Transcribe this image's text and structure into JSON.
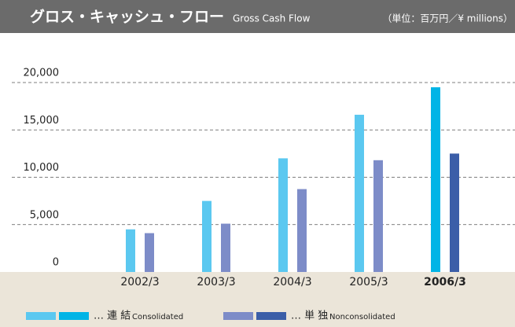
{
  "chart_data": {
    "type": "bar",
    "title": "グロス・キャッシュ・フロー",
    "subtitle": "Gross Cash Flow",
    "unit": "（単位：百万円／¥ millions）",
    "categories": [
      "2002/3",
      "2003/3",
      "2004/3",
      "2005/3",
      "2006/3"
    ],
    "highlight_category": 4,
    "series": [
      {
        "name": "… 連 結",
        "name_en": "Consolidated",
        "color": "#5bc8f0",
        "highlight_color": "#00b4e6",
        "values": [
          4500,
          7500,
          12000,
          16600,
          19500
        ]
      },
      {
        "name": "… 単 独",
        "name_en": "Nonconsolidated",
        "color": "#7d8cc8",
        "highlight_color": "#3b5ea8",
        "values": [
          4100,
          5100,
          8750,
          11800,
          12500
        ]
      }
    ],
    "ylim": [
      0,
      20000
    ],
    "yticks": [
      0,
      {
        "value": 5000,
        "label": "5,000"
      },
      {
        "value": 10000,
        "label": "10,000"
      },
      {
        "value": 15000,
        "label": "15,000"
      },
      {
        "value": 20000,
        "label": "20,000"
      }
    ],
    "grid": true
  }
}
